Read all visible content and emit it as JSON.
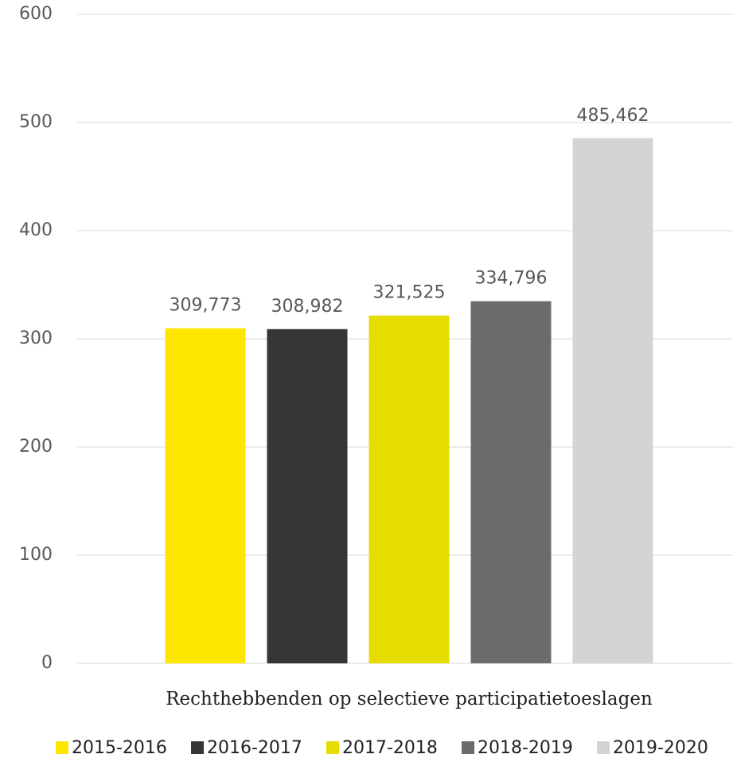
{
  "chart_data": {
    "type": "bar",
    "categories": [
      "Rechthebbenden op selectieve participatietoeslagen"
    ],
    "series": [
      {
        "name": "2015-2016",
        "color": "#ffe600",
        "values": [
          309.773
        ],
        "value_labels": [
          "309,773"
        ]
      },
      {
        "name": "2016-2017",
        "color": "#363636",
        "values": [
          308.982
        ],
        "value_labels": [
          "308,982"
        ]
      },
      {
        "name": "2017-2018",
        "color": "#e6dc00",
        "values": [
          321.525
        ],
        "value_labels": [
          "321,525"
        ]
      },
      {
        "name": "2018-2019",
        "color": "#6b6b6b",
        "values": [
          334.796
        ],
        "value_labels": [
          "334,796"
        ]
      },
      {
        "name": "2019-2020",
        "color": "#d4d4d4",
        "values": [
          485.462
        ],
        "value_labels": [
          "485,462"
        ]
      }
    ],
    "ylim": [
      0,
      600
    ],
    "yticks": [
      0,
      100,
      200,
      300,
      400,
      500,
      600
    ],
    "grid": true,
    "legend": "bottom"
  }
}
